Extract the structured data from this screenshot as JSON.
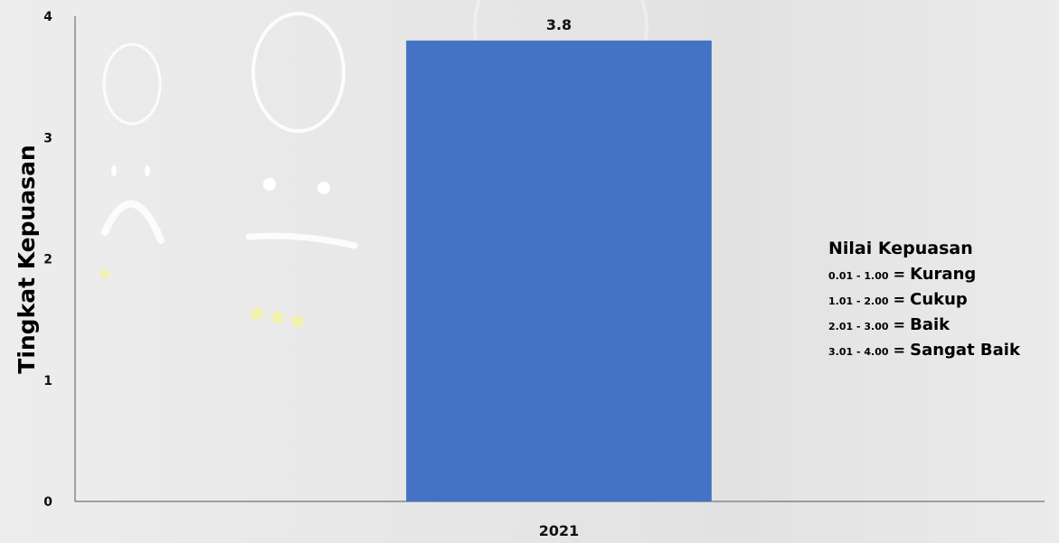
{
  "chart_data": {
    "type": "bar",
    "categories": [
      "2021"
    ],
    "values": [
      3.8
    ],
    "data_labels": [
      "3.8"
    ],
    "ylabel": "Tingkat Kepuasan",
    "xlabel": "",
    "ylim": [
      0,
      4
    ],
    "yticks": [
      "0",
      "1",
      "2",
      "3",
      "4"
    ],
    "bar_color": "#4472c4",
    "grid": false,
    "legend_position": "right"
  },
  "legend": {
    "title": "Nilai Kepuasan",
    "items": [
      {
        "range": "0.01 - 1.00",
        "eq": "=",
        "label": "Kurang"
      },
      {
        "range": "1.01 - 2.00",
        "eq": "=",
        "label": "Cukup"
      },
      {
        "range": "2.01 - 3.00",
        "eq": "=",
        "label": "Baik"
      },
      {
        "range": "3.01 - 4.00",
        "eq": "=",
        "label": "Sangat Baik"
      }
    ]
  },
  "background": {
    "description_icons": [
      "sad-face-icon",
      "neutral-face-icon",
      "star-icon"
    ]
  }
}
